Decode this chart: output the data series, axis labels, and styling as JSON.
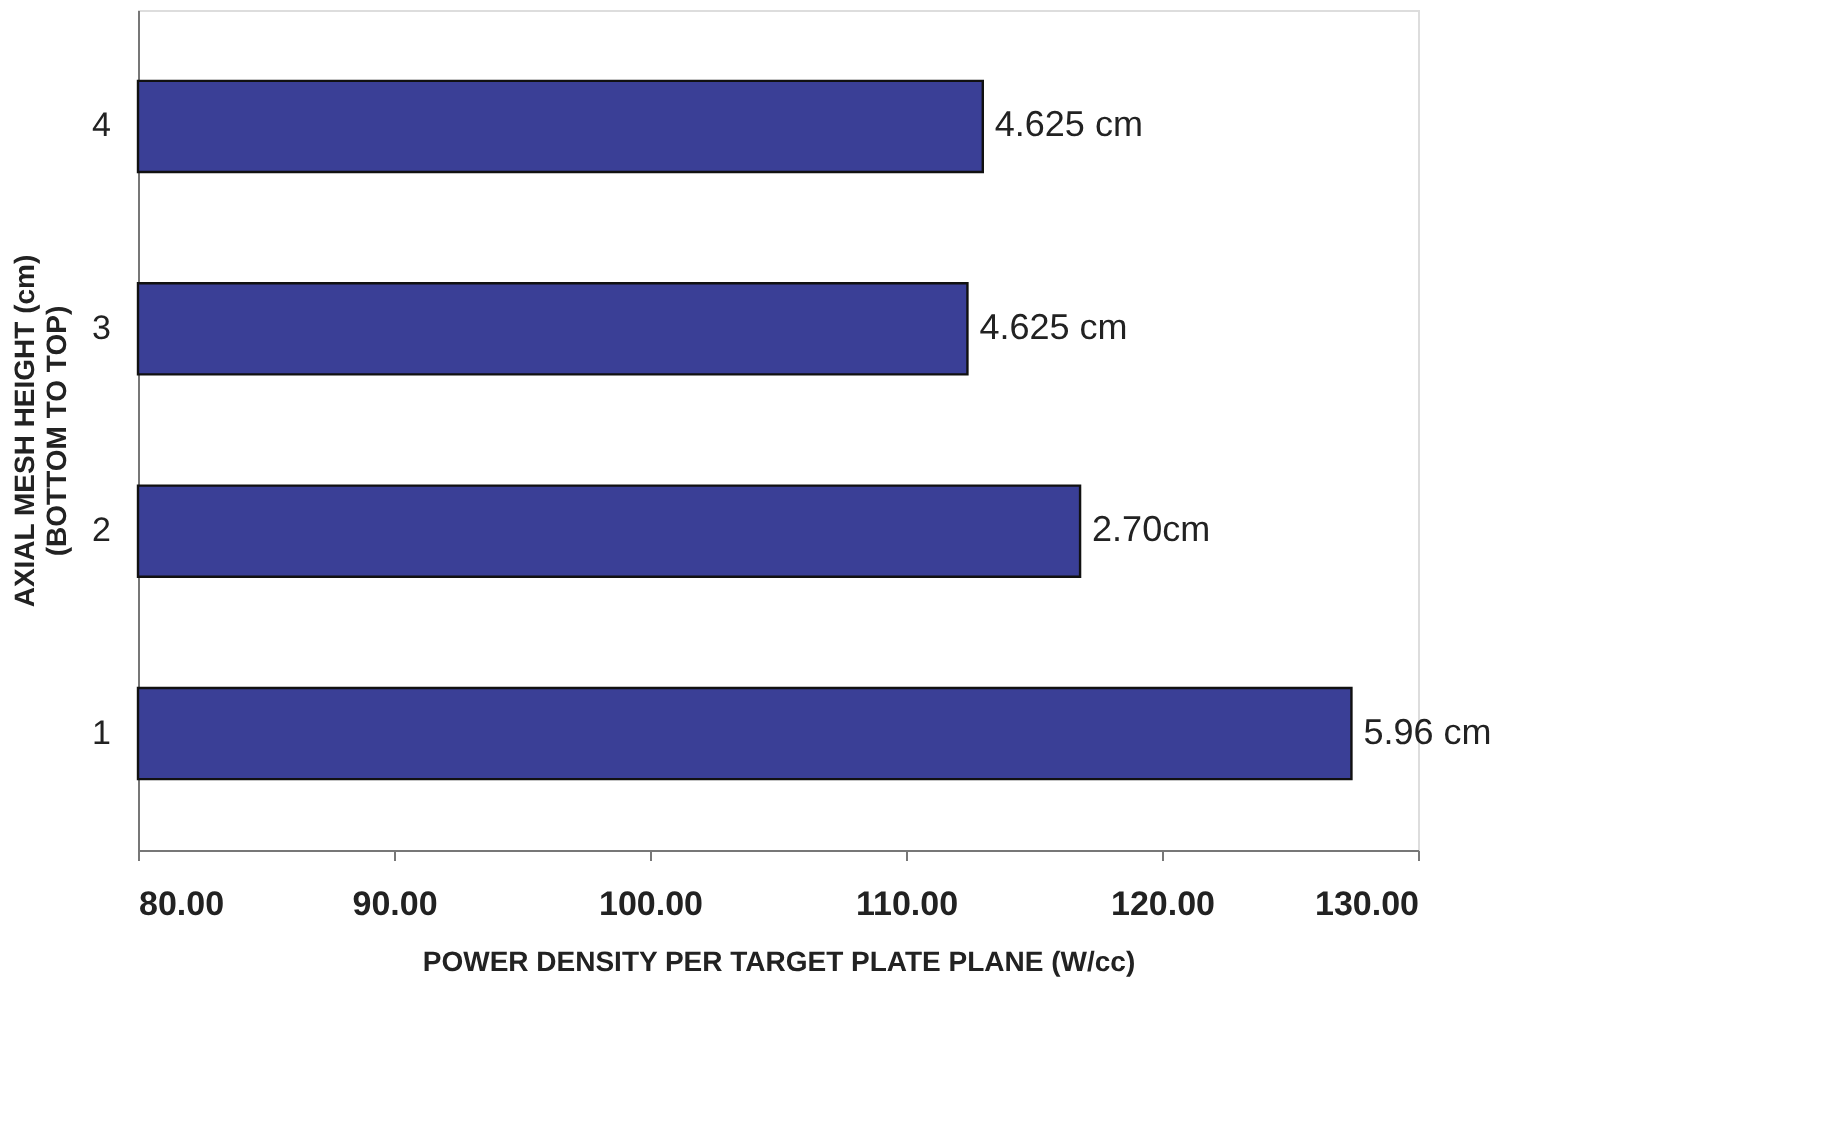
{
  "chart_data": {
    "type": "bar",
    "orientation": "horizontal",
    "xlabel": "POWER DENSITY PER TARGET PLATE PLANE (W/cc)",
    "ylabel": "AXIAL MESH HEIGHT (cm)\n(BOTTOM TO TOP)",
    "categories": [
      "4",
      "3",
      "2",
      "1"
    ],
    "values": [
      113.0,
      112.4,
      116.8,
      127.4
    ],
    "annotations": [
      {
        "text": "4.625 cm",
        "x": 113.0,
        "y": "4"
      },
      {
        "text": "4.625 cm",
        "x": 112.4,
        "y": "3"
      },
      {
        "text": "2.70cm",
        "x": 116.8,
        "y": "2"
      },
      {
        "text": "5.96 cm",
        "x": 127.4,
        "y": "1"
      }
    ],
    "color": "#3a3f96",
    "xlim": [
      80,
      130
    ],
    "xticks": [
      {
        "value": 80,
        "label": "80.00"
      },
      {
        "value": 90,
        "label": "90.00"
      },
      {
        "value": 100,
        "label": "100.00"
      },
      {
        "value": 110,
        "label": "110.00"
      },
      {
        "value": 120,
        "label": "120.00"
      },
      {
        "value": 130,
        "label": "130.00"
      }
    ],
    "grid": false
  }
}
